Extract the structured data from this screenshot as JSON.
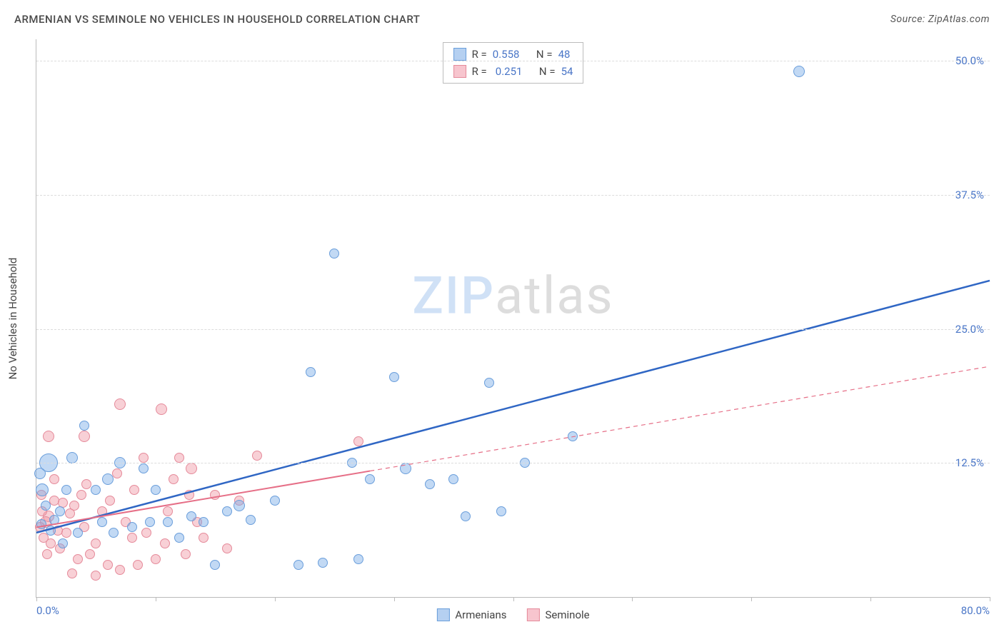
{
  "title": "ARMENIAN VS SEMINOLE NO VEHICLES IN HOUSEHOLD CORRELATION CHART",
  "source": "Source: ZipAtlas.com",
  "y_axis_label": "No Vehicles in Household",
  "watermark_prefix": "ZIP",
  "watermark_suffix": "atlas",
  "chart": {
    "type": "scatter",
    "background_color": "#ffffff",
    "grid_color": "#dcdcdc",
    "axis_color": "#bbbbbb",
    "tick_label_color": "#4a76c7",
    "tick_fontsize": 15,
    "title_fontsize": 15,
    "xlim": [
      0,
      80
    ],
    "ylim": [
      0,
      52
    ],
    "y_gridlines": [
      12.5,
      25.0,
      37.5,
      50.0
    ],
    "y_tick_labels": [
      "12.5%",
      "25.0%",
      "37.5%",
      "50.0%"
    ],
    "x_ticks": [
      0,
      10,
      20,
      30,
      40,
      50,
      60,
      70,
      80
    ],
    "x_tick_labels": {
      "0": "0.0%",
      "80": "80.0%"
    }
  },
  "series": [
    {
      "id": "a",
      "name": "Armenians",
      "legend_name": "Armenians",
      "point_fill": "rgba(120,170,230,0.45)",
      "point_stroke": "#6a9edb",
      "trend_color": "#2f66c4",
      "trend_width": 2.5,
      "trend_dash": "none",
      "trend": {
        "x1": 0,
        "y1": 6.0,
        "x2": 80,
        "y2": 29.5
      },
      "r_label": "R =",
      "r_value": "0.558",
      "n_label": "N =",
      "n_value": "48",
      "points": [
        {
          "x": 64,
          "y": 49,
          "r": 7
        },
        {
          "x": 25,
          "y": 32,
          "r": 6
        },
        {
          "x": 23,
          "y": 21,
          "r": 6
        },
        {
          "x": 30,
          "y": 20.5,
          "r": 6
        },
        {
          "x": 38,
          "y": 20,
          "r": 6
        },
        {
          "x": 45,
          "y": 15,
          "r": 6
        },
        {
          "x": 26.5,
          "y": 12.5,
          "r": 6
        },
        {
          "x": 31,
          "y": 12,
          "r": 7
        },
        {
          "x": 35,
          "y": 11,
          "r": 6
        },
        {
          "x": 41,
          "y": 12.5,
          "r": 6
        },
        {
          "x": 39,
          "y": 8,
          "r": 6
        },
        {
          "x": 33,
          "y": 10.5,
          "r": 6
        },
        {
          "x": 36,
          "y": 7.5,
          "r": 6
        },
        {
          "x": 20,
          "y": 9,
          "r": 6
        },
        {
          "x": 22,
          "y": 3,
          "r": 6
        },
        {
          "x": 24,
          "y": 3.2,
          "r": 6
        },
        {
          "x": 16,
          "y": 8,
          "r": 6
        },
        {
          "x": 17,
          "y": 8.5,
          "r": 7
        },
        {
          "x": 18,
          "y": 7.2,
          "r": 6
        },
        {
          "x": 13,
          "y": 7.5,
          "r": 6
        },
        {
          "x": 14,
          "y": 7,
          "r": 6
        },
        {
          "x": 10,
          "y": 10,
          "r": 6
        },
        {
          "x": 9,
          "y": 12,
          "r": 6
        },
        {
          "x": 7,
          "y": 12.5,
          "r": 7
        },
        {
          "x": 6,
          "y": 11,
          "r": 7
        },
        {
          "x": 5,
          "y": 10,
          "r": 6
        },
        {
          "x": 4,
          "y": 16,
          "r": 6
        },
        {
          "x": 3,
          "y": 13,
          "r": 7
        },
        {
          "x": 2.5,
          "y": 10,
          "r": 6
        },
        {
          "x": 2,
          "y": 8,
          "r": 6
        },
        {
          "x": 1.5,
          "y": 7.2,
          "r": 6
        },
        {
          "x": 1,
          "y": 12.5,
          "r": 12
        },
        {
          "x": 0.5,
          "y": 10,
          "r": 8
        },
        {
          "x": 0.8,
          "y": 8.5,
          "r": 6
        },
        {
          "x": 0.3,
          "y": 11.5,
          "r": 7
        },
        {
          "x": 5.5,
          "y": 7,
          "r": 6
        },
        {
          "x": 6.5,
          "y": 6,
          "r": 6
        },
        {
          "x": 8,
          "y": 6.5,
          "r": 6
        },
        {
          "x": 9.5,
          "y": 7,
          "r": 6
        },
        {
          "x": 11,
          "y": 7,
          "r": 6
        },
        {
          "x": 12,
          "y": 5.5,
          "r": 6
        },
        {
          "x": 15,
          "y": 3,
          "r": 6
        },
        {
          "x": 27,
          "y": 3.5,
          "r": 6
        },
        {
          "x": 28,
          "y": 11,
          "r": 6
        },
        {
          "x": 3.5,
          "y": 6,
          "r": 6
        },
        {
          "x": 2.2,
          "y": 5,
          "r": 6
        },
        {
          "x": 1.2,
          "y": 6.2,
          "r": 6
        },
        {
          "x": 0.4,
          "y": 6.8,
          "r": 6
        }
      ]
    },
    {
      "id": "b",
      "name": "Seminole",
      "legend_name": "Seminole",
      "point_fill": "rgba(240,150,165,0.45)",
      "point_stroke": "#e58a9a",
      "trend_color": "#e66f87",
      "trend_width": 2,
      "trend_dash": "6,5",
      "trend_solid_until_x": 28,
      "trend": {
        "x1": 0,
        "y1": 6.5,
        "x2": 80,
        "y2": 21.5
      },
      "r_label": "R =",
      "r_value": "0.251",
      "n_label": "N =",
      "n_value": "54",
      "points": [
        {
          "x": 7,
          "y": 18,
          "r": 7
        },
        {
          "x": 10.5,
          "y": 17.5,
          "r": 7
        },
        {
          "x": 4,
          "y": 15,
          "r": 7
        },
        {
          "x": 27,
          "y": 14.5,
          "r": 6
        },
        {
          "x": 9,
          "y": 13,
          "r": 6
        },
        {
          "x": 12,
          "y": 13,
          "r": 6
        },
        {
          "x": 13,
          "y": 12,
          "r": 7
        },
        {
          "x": 18.5,
          "y": 13.2,
          "r": 6
        },
        {
          "x": 15,
          "y": 9.5,
          "r": 6
        },
        {
          "x": 17,
          "y": 9,
          "r": 6
        },
        {
          "x": 11,
          "y": 8,
          "r": 6
        },
        {
          "x": 13.5,
          "y": 7,
          "r": 6
        },
        {
          "x": 14,
          "y": 5.5,
          "r": 6
        },
        {
          "x": 16,
          "y": 4.5,
          "r": 6
        },
        {
          "x": 12.5,
          "y": 4,
          "r": 6
        },
        {
          "x": 10,
          "y": 3.5,
          "r": 6
        },
        {
          "x": 8.5,
          "y": 3,
          "r": 6
        },
        {
          "x": 7,
          "y": 2.5,
          "r": 6
        },
        {
          "x": 6,
          "y": 3,
          "r": 6
        },
        {
          "x": 5,
          "y": 2,
          "r": 6
        },
        {
          "x": 4.5,
          "y": 4,
          "r": 6
        },
        {
          "x": 3,
          "y": 2.2,
          "r": 6
        },
        {
          "x": 3.5,
          "y": 3.5,
          "r": 6
        },
        {
          "x": 2,
          "y": 4.5,
          "r": 6
        },
        {
          "x": 2.5,
          "y": 6,
          "r": 6
        },
        {
          "x": 1,
          "y": 15,
          "r": 7
        },
        {
          "x": 1.5,
          "y": 9,
          "r": 6
        },
        {
          "x": 1,
          "y": 7.5,
          "r": 7
        },
        {
          "x": 0.5,
          "y": 8,
          "r": 6
        },
        {
          "x": 0.8,
          "y": 7,
          "r": 7
        },
        {
          "x": 0.3,
          "y": 6.5,
          "r": 6
        },
        {
          "x": 0.6,
          "y": 5.5,
          "r": 6
        },
        {
          "x": 1.2,
          "y": 5,
          "r": 6
        },
        {
          "x": 1.8,
          "y": 6.2,
          "r": 6
        },
        {
          "x": 2.8,
          "y": 7.8,
          "r": 6
        },
        {
          "x": 3.2,
          "y": 8.5,
          "r": 6
        },
        {
          "x": 3.8,
          "y": 9.5,
          "r": 6
        },
        {
          "x": 4.2,
          "y": 10.5,
          "r": 6
        },
        {
          "x": 5.5,
          "y": 8,
          "r": 6
        },
        {
          "x": 6.2,
          "y": 9,
          "r": 6
        },
        {
          "x": 7.5,
          "y": 7,
          "r": 6
        },
        {
          "x": 8,
          "y": 5.5,
          "r": 6
        },
        {
          "x": 9.2,
          "y": 6,
          "r": 6
        },
        {
          "x": 10.8,
          "y": 5,
          "r": 6
        },
        {
          "x": 5,
          "y": 5,
          "r": 6
        },
        {
          "x": 4,
          "y": 6.5,
          "r": 6
        },
        {
          "x": 2.2,
          "y": 8.8,
          "r": 6
        },
        {
          "x": 1.5,
          "y": 11,
          "r": 6
        },
        {
          "x": 0.4,
          "y": 9.5,
          "r": 6
        },
        {
          "x": 0.9,
          "y": 4,
          "r": 6
        },
        {
          "x": 6.8,
          "y": 11.5,
          "r": 6
        },
        {
          "x": 8.2,
          "y": 10,
          "r": 6
        },
        {
          "x": 11.5,
          "y": 11,
          "r": 6
        },
        {
          "x": 12.8,
          "y": 9.5,
          "r": 6
        }
      ]
    }
  ]
}
